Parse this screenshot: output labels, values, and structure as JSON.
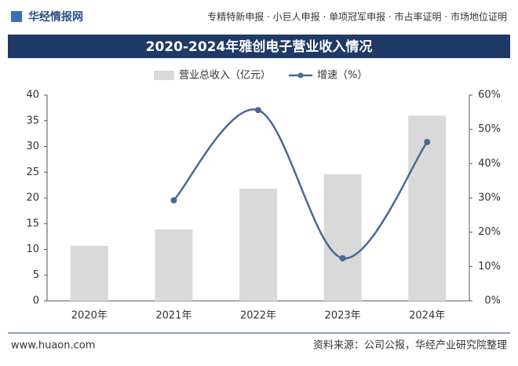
{
  "header": {
    "logo": "华经情报网",
    "services": "专精特新申报 · 小巨人申报 · 单项冠军申报 · 市占率证明 · 市场地位证明"
  },
  "chart_data": {
    "type": "bar-line",
    "title": "2020-2024年雅创电子营业收入情况",
    "categories": [
      "2020年",
      "2021年",
      "2022年",
      "2023年",
      "2024年"
    ],
    "series": [
      {
        "name": "营业总收入（亿元）",
        "type": "bar",
        "color": "#d9d9d9",
        "values": [
          10.7,
          13.9,
          21.8,
          24.6,
          36.0
        ]
      },
      {
        "name": "增速（%）",
        "type": "line",
        "axis": "y2",
        "color": "#4a6896",
        "values": [
          null,
          29.3,
          55.6,
          12.4,
          46.3
        ]
      }
    ],
    "ylim": [
      0,
      40
    ],
    "yticks": [
      0,
      5,
      10,
      15,
      20,
      25,
      30,
      35,
      40
    ],
    "y2lim": [
      0,
      60
    ],
    "y2ticks": [
      {
        "value": 0,
        "label": "0%"
      },
      {
        "value": 10,
        "label": "10%"
      },
      {
        "value": 20,
        "label": "20%"
      },
      {
        "value": 30,
        "label": "30%"
      },
      {
        "value": 40,
        "label": "40%"
      },
      {
        "value": 50,
        "label": "50%"
      },
      {
        "value": 60,
        "label": "60%"
      }
    ]
  },
  "footer": {
    "url": "www.huaon.com",
    "source": "资料来源：公司公报，华经产业研究院整理"
  }
}
